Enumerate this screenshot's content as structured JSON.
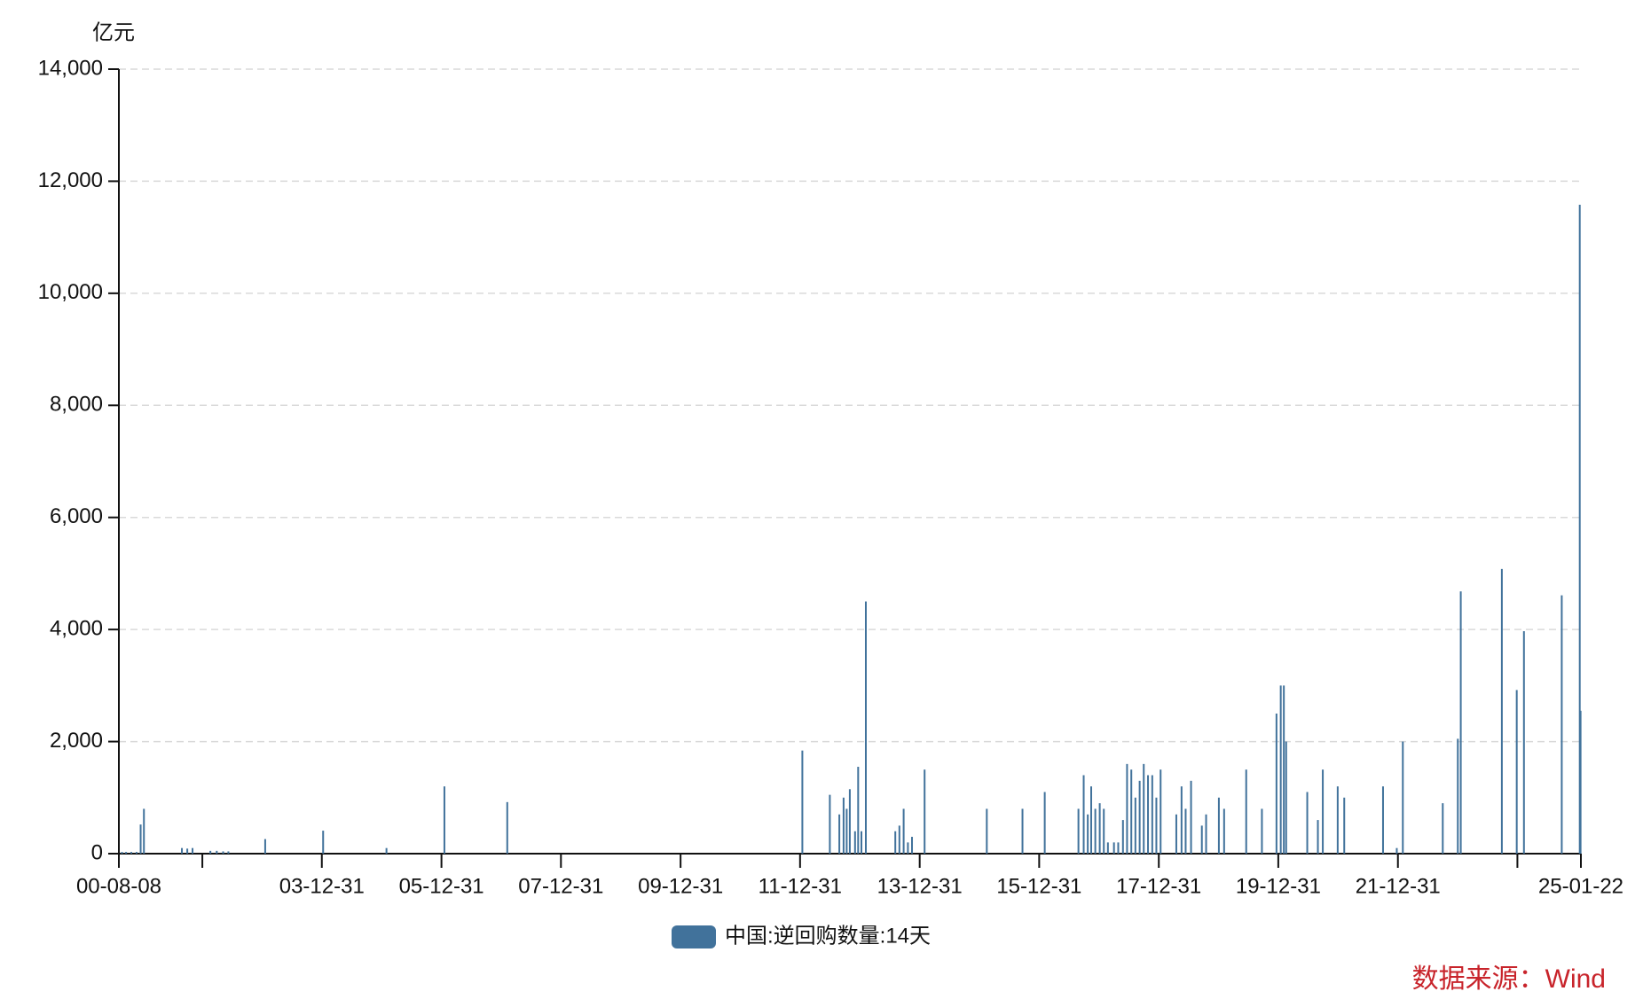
{
  "chart_data": {
    "type": "bar",
    "y_label": "亿元",
    "source": "数据来源：Wind",
    "legend": "bottom",
    "grid": true,
    "x": [
      "2000-08-27",
      "2000-09-21",
      "2000-10-23",
      "2000-11-24",
      "2000-12-19",
      "2001-01-08",
      "2001-08-28",
      "2001-09-30",
      "2001-11-01",
      "2002-02-18",
      "2002-03-29",
      "2002-05-07",
      "2002-06-08",
      "2003-01-19",
      "2004-01-08",
      "2005-01-29",
      "2006-01-18",
      "2007-02-06",
      "2012-01-14",
      "2012-06-30",
      "2012-08-27",
      "2012-09-22",
      "2012-10-11",
      "2012-10-30",
      "2012-12-01",
      "2012-12-20",
      "2013-01-09",
      "2013-02-05",
      "2013-08-04",
      "2013-08-29",
      "2013-09-24",
      "2013-10-20",
      "2013-11-14",
      "2014-01-30",
      "2015-02-14",
      "2015-09-20",
      "2016-02-03",
      "2016-08-27",
      "2016-09-28",
      "2016-10-23",
      "2016-11-13",
      "2016-12-08",
      "2017-01-04",
      "2017-01-29",
      "2017-02-23",
      "2017-04-01",
      "2017-04-27",
      "2017-05-26",
      "2017-06-20",
      "2017-07-16",
      "2017-08-10",
      "2017-09-05",
      "2017-09-30",
      "2017-10-26",
      "2017-11-21",
      "2017-12-16",
      "2018-01-11",
      "2018-04-17",
      "2018-05-19",
      "2018-06-13",
      "2018-07-16",
      "2018-09-20",
      "2018-10-16",
      "2019-01-02",
      "2019-02-03",
      "2019-06-18",
      "2019-09-22",
      "2019-12-20",
      "2020-01-15",
      "2020-02-03",
      "2020-02-17",
      "2020-06-25",
      "2020-08-29",
      "2020-09-28",
      "2020-12-28",
      "2021-02-06",
      "2021-10-01",
      "2021-12-24",
      "2022-01-30",
      "2022-10-01",
      "2023-01-01",
      "2023-01-19",
      "2023-09-27",
      "2023-12-27",
      "2024-02-09",
      "2024-09-27",
      "2025-01-15",
      "2025-01-20"
    ],
    "series": [
      {
        "name": "中国:逆回购数量:14天",
        "color": "#41729b",
        "values": [
          30,
          30,
          30,
          30,
          520,
          800,
          100,
          90,
          100,
          50,
          50,
          40,
          40,
          260,
          410,
          100,
          1200,
          920,
          1840,
          1050,
          700,
          1000,
          800,
          1150,
          400,
          1550,
          400,
          4500,
          400,
          500,
          800,
          200,
          300,
          1500,
          800,
          800,
          1100,
          800,
          1400,
          700,
          1200,
          800,
          900,
          800,
          200,
          200,
          200,
          600,
          1600,
          1500,
          1000,
          1300,
          1600,
          1400,
          1400,
          1000,
          1500,
          700,
          1200,
          800,
          1300,
          500,
          700,
          1000,
          800,
          1500,
          800,
          2500,
          3000,
          3000,
          2000,
          1100,
          600,
          1500,
          1200,
          1000,
          1200,
          100,
          2000,
          900,
          2050,
          4680,
          5080,
          2920,
          3970,
          4610,
          11580,
          2550
        ]
      }
    ],
    "xlim": [
      "2000-08-08",
      "2025-01-22"
    ],
    "xticks": [
      {
        "value": "2000-08-08",
        "label": "00-08-08"
      },
      {
        "value": "2001-12-31",
        "label": null
      },
      {
        "value": "2003-12-31",
        "label": "03-12-31"
      },
      {
        "value": "2005-12-31",
        "label": "05-12-31"
      },
      {
        "value": "2007-12-31",
        "label": "07-12-31"
      },
      {
        "value": "2009-12-31",
        "label": "09-12-31"
      },
      {
        "value": "2011-12-31",
        "label": "11-12-31"
      },
      {
        "value": "2013-12-31",
        "label": "13-12-31"
      },
      {
        "value": "2015-12-31",
        "label": "15-12-31"
      },
      {
        "value": "2017-12-31",
        "label": "17-12-31"
      },
      {
        "value": "2019-12-31",
        "label": "19-12-31"
      },
      {
        "value": "2021-12-31",
        "label": "21-12-31"
      },
      {
        "value": "2023-12-31",
        "label": null
      },
      {
        "value": "2025-01-22",
        "label": "25-01-22"
      }
    ],
    "ylim": [
      0,
      14000
    ],
    "yticks": [
      0,
      {
        "value": 2000,
        "label": "2,000"
      },
      {
        "value": 4000,
        "label": "4,000"
      },
      {
        "value": 6000,
        "label": "6,000"
      },
      {
        "value": 8000,
        "label": "8,000"
      },
      {
        "value": 10000,
        "label": "10,000"
      },
      {
        "value": 12000,
        "label": "12,000"
      },
      {
        "value": 14000,
        "label": "14,000"
      }
    ]
  }
}
